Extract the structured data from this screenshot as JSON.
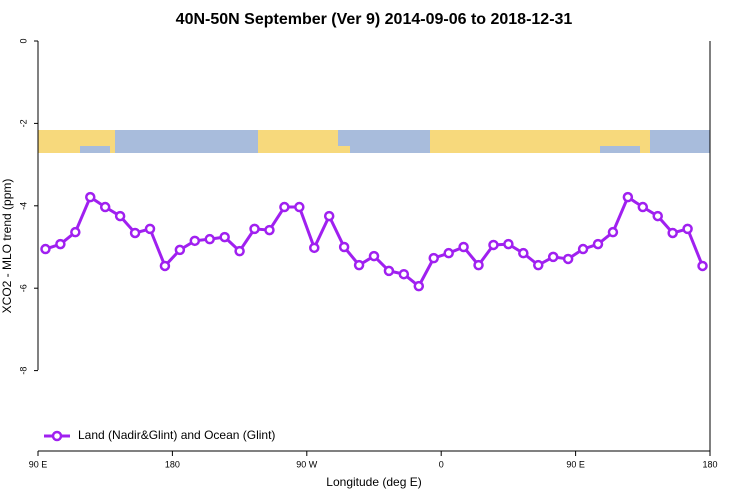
{
  "chart_data": {
    "type": "line",
    "title": "40N-50N September (Ver 9)   2014-09-06 to 2018-12-31",
    "x_label": "Longitude (deg E)",
    "y_label": "XCO2 - MLO trend (ppm)",
    "x": [
      95,
      105,
      115,
      125,
      135,
      145,
      155,
      165,
      175,
      185,
      195,
      205,
      215,
      225,
      235,
      245,
      255,
      265,
      275,
      285,
      295,
      305,
      315,
      325,
      335,
      345,
      355,
      365,
      375,
      385,
      395,
      405,
      415,
      425,
      435,
      445,
      455,
      465,
      475,
      485,
      495,
      505,
      515,
      525,
      535
    ],
    "series": [
      {
        "name": "Land (Nadir&Glint) and Ocean (Glint)",
        "color": "#a020f0",
        "values": [
          -5.05,
          -4.93,
          -4.64,
          -3.79,
          -4.03,
          -4.25,
          -4.66,
          -4.56,
          -5.46,
          -5.07,
          -4.85,
          -4.81,
          -4.76,
          -5.1,
          -4.56,
          -4.59,
          -4.03,
          -4.03,
          -5.02,
          -4.25,
          -5.0,
          -5.44,
          -5.22,
          -5.58,
          -5.66,
          -5.95,
          -5.27,
          -5.15,
          -5.0,
          -5.44,
          -4.95,
          -4.93,
          -5.15,
          -5.44,
          -5.24,
          -5.29,
          -5.05,
          -4.93,
          -4.64,
          -3.79,
          -4.03,
          -4.25,
          -4.66,
          -4.56,
          -5.46
        ]
      }
    ],
    "xlim": [
      90,
      540
    ],
    "xticks": [
      {
        "value": 90,
        "label": "90 E"
      },
      {
        "value": 180,
        "label": "180"
      },
      {
        "value": 270,
        "label": "90 W"
      },
      {
        "value": 360,
        "label": "0"
      },
      {
        "value": 450,
        "label": "90 E"
      },
      {
        "value": 540,
        "label": "180"
      }
    ],
    "ylim": [
      -10,
      0
    ],
    "yticks": [
      0,
      -2,
      -4,
      -6,
      -8
    ],
    "grid": false,
    "legend": "bottomleft"
  }
}
